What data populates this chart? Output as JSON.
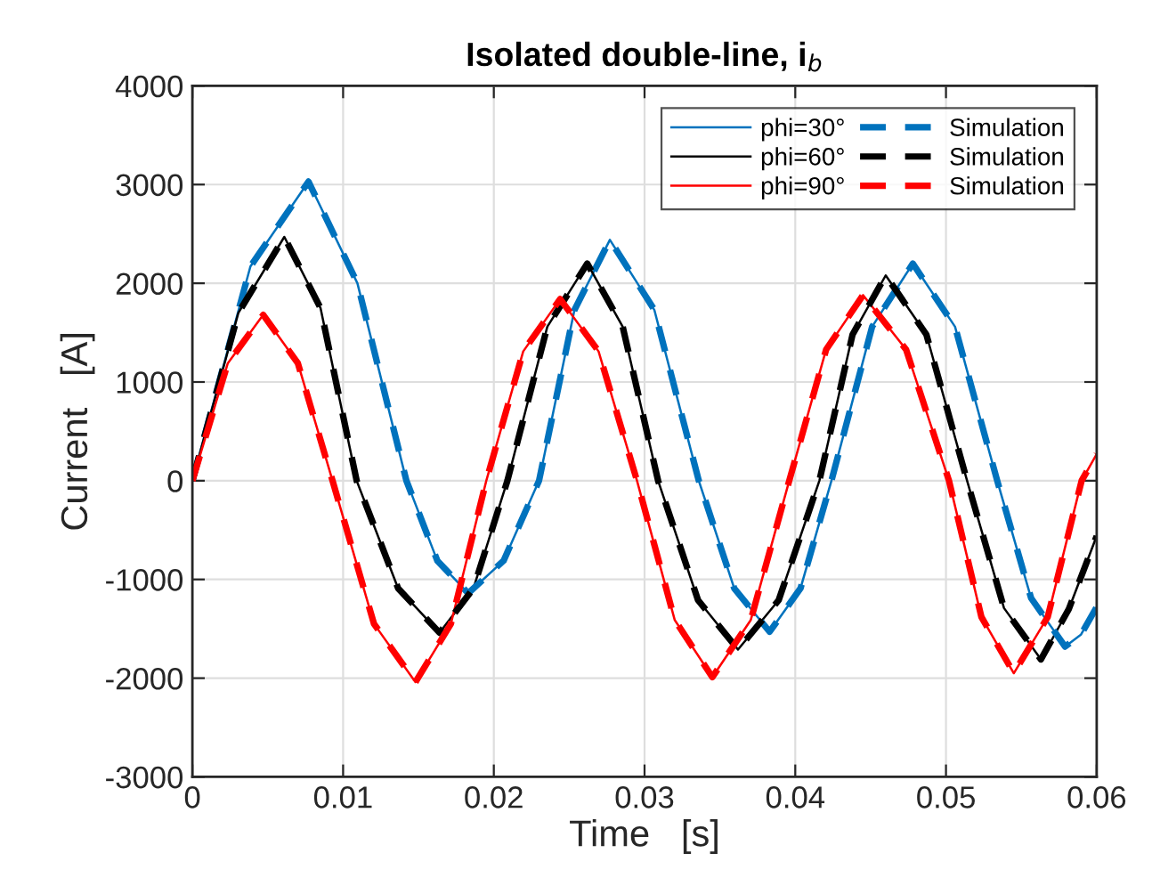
{
  "chart_data": {
    "type": "line",
    "title": "Isolated double-line, i$_{b}$",
    "xlabel": "Time   [s]",
    "ylabel": "Current   [A]",
    "xlim": [
      0,
      0.06
    ],
    "ylim": [
      -3000,
      4000
    ],
    "xticks": [
      0,
      0.01,
      0.02,
      0.03,
      0.04,
      0.05,
      0.06
    ],
    "yticks": [
      -3000,
      -2000,
      -1000,
      0,
      1000,
      2000,
      3000,
      4000
    ],
    "grid": true,
    "legend": "top right",
    "series": [
      {
        "name": "phi=30°",
        "color": "#0072bd",
        "line_style": "solid",
        "x": [
          0,
          0.00385,
          0.0077,
          0.01095,
          0.0142,
          0.01625,
          0.0183,
          0.02065,
          0.023,
          0.02535,
          0.0277,
          0.03065,
          0.0336,
          0.03595,
          0.0383,
          0.04035,
          0.0424,
          0.0451,
          0.0478,
          0.0506,
          0.0534,
          0.05565,
          0.0579,
          0.05895,
          0.06
        ],
        "values": [
          0,
          2170,
          3030,
          2000,
          0,
          -810,
          -1140,
          -810,
          0,
          1730,
          2440,
          1730,
          0,
          -1090,
          -1530,
          -1090,
          0,
          1560,
          2200,
          1560,
          0,
          -1190,
          -1680,
          -1560,
          -1280
        ]
      },
      {
        "name": "phi=60°",
        "color": "#000000",
        "line_style": "solid",
        "x": [
          0,
          0.00305,
          0.0061,
          0.0085,
          0.0109,
          0.01365,
          0.0164,
          0.01865,
          0.0209,
          0.02355,
          0.0262,
          0.02855,
          0.0309,
          0.03355,
          0.0362,
          0.0389,
          0.0416,
          0.0438,
          0.046,
          0.0487,
          0.0514,
          0.05385,
          0.0563,
          0.05815,
          0.06
        ],
        "values": [
          0,
          1700,
          2470,
          1750,
          0,
          -1090,
          -1540,
          -1090,
          0,
          1560,
          2200,
          1560,
          0,
          -1210,
          -1710,
          -1210,
          0,
          1480,
          2080,
          1480,
          0,
          -1290,
          -1810,
          -1300,
          -560
        ]
      },
      {
        "name": "phi=90°",
        "color": "#ff0000",
        "line_style": "solid",
        "x": [
          0,
          0.00235,
          0.0047,
          0.007,
          0.0093,
          0.01205,
          0.0148,
          0.01715,
          0.0195,
          0.02195,
          0.0244,
          0.02695,
          0.0295,
          0.032,
          0.0345,
          0.03705,
          0.0396,
          0.04205,
          0.0445,
          0.04735,
          0.0502,
          0.05235,
          0.0545,
          0.05675,
          0.059,
          0.0595,
          0.06
        ],
        "values": [
          0,
          1190,
          1680,
          1190,
          0,
          -1450,
          -2040,
          -1450,
          0,
          1310,
          1840,
          1310,
          0,
          -1410,
          -1990,
          -1410,
          0,
          1330,
          1880,
          1330,
          0,
          -1380,
          -1950,
          -1380,
          0,
          135,
          270
        ]
      },
      {
        "name": "Simulation",
        "color": "#0072bd",
        "line_style": "dashed",
        "x": [
          0,
          0.00385,
          0.0077,
          0.01095,
          0.0142,
          0.01625,
          0.0183,
          0.02065,
          0.023,
          0.02535,
          0.0277,
          0.03065,
          0.0336,
          0.03595,
          0.0383,
          0.04035,
          0.0424,
          0.0451,
          0.0478,
          0.0506,
          0.0534,
          0.05565,
          0.0579,
          0.05895,
          0.06
        ],
        "values": [
          0,
          2170,
          3030,
          2000,
          0,
          -810,
          -1140,
          -810,
          0,
          1730,
          2440,
          1730,
          0,
          -1090,
          -1530,
          -1090,
          0,
          1560,
          2200,
          1560,
          0,
          -1190,
          -1680,
          -1560,
          -1280
        ]
      },
      {
        "name": "Simulation",
        "color": "#000000",
        "line_style": "dashed",
        "x": [
          0,
          0.00305,
          0.0061,
          0.0085,
          0.0109,
          0.01365,
          0.0164,
          0.01865,
          0.0209,
          0.02355,
          0.0262,
          0.02855,
          0.0309,
          0.03355,
          0.0362,
          0.0389,
          0.0416,
          0.0438,
          0.046,
          0.0487,
          0.0514,
          0.05385,
          0.0563,
          0.05815,
          0.06
        ],
        "values": [
          0,
          1700,
          2470,
          1750,
          0,
          -1090,
          -1540,
          -1090,
          0,
          1560,
          2200,
          1560,
          0,
          -1210,
          -1710,
          -1210,
          0,
          1480,
          2080,
          1480,
          0,
          -1290,
          -1810,
          -1300,
          -560
        ]
      },
      {
        "name": "Simulation",
        "color": "#ff0000",
        "line_style": "dashed",
        "x": [
          0,
          0.00235,
          0.0047,
          0.007,
          0.0093,
          0.01205,
          0.0148,
          0.01715,
          0.0195,
          0.02195,
          0.0244,
          0.02695,
          0.0295,
          0.032,
          0.0345,
          0.03705,
          0.0396,
          0.04205,
          0.0445,
          0.04735,
          0.0502,
          0.05235,
          0.0545,
          0.05675,
          0.059,
          0.0595,
          0.06
        ],
        "values": [
          0,
          1190,
          1680,
          1190,
          0,
          -1450,
          -2040,
          -1450,
          0,
          1310,
          1840,
          1310,
          0,
          -1410,
          -1990,
          -1410,
          0,
          1330,
          1880,
          1330,
          0,
          -1380,
          -1950,
          -1380,
          0,
          135,
          270
        ]
      }
    ]
  }
}
